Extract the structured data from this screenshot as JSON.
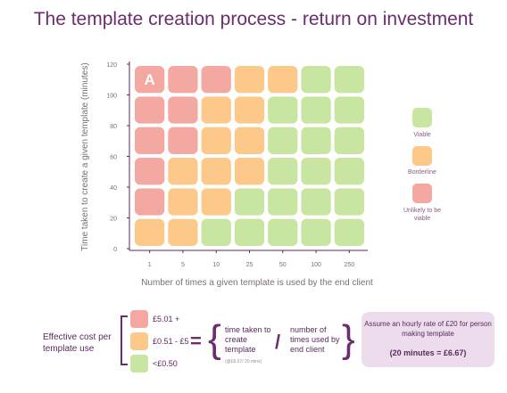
{
  "title": "The template creation process - return on investment",
  "colors": {
    "viable": "#c9e5a2",
    "borderline": "#fcc98a",
    "unlikely": "#f3a8a2",
    "accent": "#6b2d6e"
  },
  "chart_data": {
    "type": "heatmap",
    "title": "The template creation process - return on investment",
    "xlabel": "Number of times a given template is used by the end client",
    "ylabel": "Time taken to create a given template (minutes)",
    "x_categories": [
      "1",
      "5",
      "10",
      "25",
      "50",
      "100",
      "250"
    ],
    "y_ticks": [
      "0",
      "20",
      "40",
      "60",
      "80",
      "100",
      "120"
    ],
    "row_labels": [
      "120",
      "100",
      "80",
      "60",
      "40",
      "20"
    ],
    "cells": [
      [
        "unlikely",
        "unlikely",
        "unlikely",
        "borderline",
        "borderline",
        "viable",
        "viable"
      ],
      [
        "unlikely",
        "unlikely",
        "borderline",
        "borderline",
        "viable",
        "viable",
        "viable"
      ],
      [
        "unlikely",
        "unlikely",
        "borderline",
        "borderline",
        "viable",
        "viable",
        "viable"
      ],
      [
        "unlikely",
        "borderline",
        "borderline",
        "borderline",
        "viable",
        "viable",
        "viable"
      ],
      [
        "unlikely",
        "borderline",
        "borderline",
        "viable",
        "viable",
        "viable",
        "viable"
      ],
      [
        "borderline",
        "borderline",
        "viable",
        "viable",
        "viable",
        "viable",
        "viable"
      ]
    ],
    "marker": {
      "row": 0,
      "col": 0,
      "text": "A"
    },
    "legend": [
      {
        "key": "viable",
        "label": "Viable"
      },
      {
        "key": "borderline",
        "label": "Borderline"
      },
      {
        "key": "unlikely",
        "label": "Unlikely to be viable"
      }
    ],
    "legend_position": "right"
  },
  "bottom": {
    "label": "Effective cost per template use",
    "tiers": [
      {
        "key": "unlikely",
        "label": "£5.01 +"
      },
      {
        "key": "borderline",
        "label": "£0.51 - £5"
      },
      {
        "key": "viable",
        "label": "<£0.50"
      }
    ],
    "equals": "=",
    "numerator": "time taken to create template",
    "numerator_note": "(@£6.67/ 20 mins)",
    "divide": "/",
    "denominator": "number of times used by end client",
    "note_line1": "Assume an hourly rate of £20 for person making template",
    "note_line2": "(20 minutes = £6.67)"
  }
}
